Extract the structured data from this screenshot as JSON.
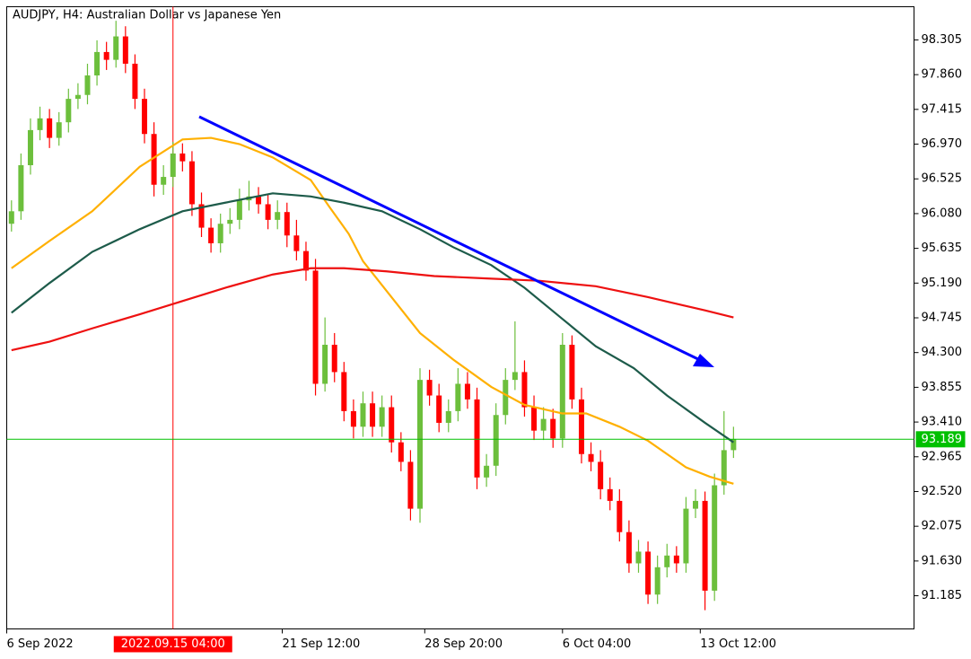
{
  "chart_data": {
    "type": "candlestick",
    "title": "AUDJPY, H4:  Australian Dollar vs Japanese Yen",
    "x": [
      0,
      2,
      4,
      6,
      8,
      10,
      12,
      14,
      16,
      18,
      20,
      22,
      24,
      26,
      28,
      30,
      32,
      34,
      36,
      38,
      40,
      42,
      44,
      46,
      48,
      50,
      52,
      54,
      56,
      58,
      60,
      62,
      64,
      66,
      68,
      70,
      72,
      74,
      76,
      78,
      80,
      82,
      84,
      86,
      88,
      90,
      92,
      94,
      96,
      98,
      100,
      102,
      104,
      106,
      108,
      110,
      112,
      114,
      116,
      118,
      120,
      122,
      124,
      126,
      128,
      130,
      132,
      134,
      136,
      138,
      140,
      142,
      144,
      146,
      148,
      150,
      152
    ],
    "open": [
      95.95,
      96.11,
      96.7,
      97.15,
      97.3,
      97.05,
      97.25,
      97.55,
      97.6,
      97.85,
      98.15,
      98.05,
      98.35,
      98.0,
      97.55,
      97.1,
      96.45,
      96.55,
      96.85,
      96.75,
      96.2,
      95.9,
      95.7,
      95.95,
      96.0,
      96.25,
      96.3,
      96.2,
      96.0,
      96.1,
      95.8,
      95.6,
      95.35,
      93.9,
      94.4,
      94.05,
      93.55,
      93.35,
      93.65,
      93.35,
      93.6,
      93.15,
      92.9,
      92.3,
      93.95,
      93.75,
      93.4,
      93.55,
      93.9,
      93.7,
      92.7,
      92.85,
      93.5,
      93.95,
      94.05,
      93.6,
      93.3,
      93.45,
      93.2,
      94.4,
      93.7,
      93.0,
      92.9,
      92.55,
      92.4,
      92.0,
      91.6,
      91.75,
      91.2,
      91.55,
      91.7,
      91.6,
      92.3,
      92.4,
      91.25,
      92.6,
      93.05
    ],
    "high": [
      96.25,
      96.85,
      97.3,
      97.45,
      97.42,
      97.38,
      97.68,
      97.75,
      98.0,
      98.3,
      98.28,
      98.55,
      98.48,
      98.12,
      97.68,
      97.25,
      96.7,
      97.0,
      96.98,
      96.88,
      96.35,
      96.02,
      96.08,
      96.15,
      96.4,
      96.5,
      96.42,
      96.32,
      96.25,
      96.22,
      96.0,
      95.72,
      95.5,
      94.75,
      94.55,
      94.18,
      93.7,
      93.8,
      93.8,
      93.75,
      93.75,
      93.28,
      93.05,
      94.1,
      94.08,
      93.9,
      93.7,
      94.1,
      94.05,
      93.85,
      93.0,
      93.65,
      94.1,
      94.7,
      94.2,
      93.75,
      93.6,
      93.58,
      94.55,
      94.52,
      93.85,
      93.15,
      93.05,
      92.7,
      92.55,
      92.15,
      91.9,
      91.88,
      91.7,
      91.85,
      91.82,
      92.45,
      92.55,
      92.52,
      92.75,
      93.55,
      93.35
    ],
    "low": [
      95.85,
      96.0,
      96.58,
      97.02,
      96.92,
      96.95,
      97.12,
      97.42,
      97.48,
      97.72,
      97.92,
      97.95,
      97.88,
      97.42,
      96.98,
      96.3,
      96.32,
      96.42,
      96.62,
      96.05,
      95.78,
      95.58,
      95.58,
      95.82,
      95.88,
      96.12,
      96.08,
      95.88,
      95.88,
      95.65,
      95.48,
      95.22,
      93.75,
      93.8,
      93.92,
      93.42,
      93.2,
      93.22,
      93.22,
      93.22,
      93.02,
      92.78,
      92.15,
      92.12,
      93.62,
      93.28,
      93.28,
      93.42,
      93.58,
      92.55,
      92.58,
      92.72,
      93.38,
      93.82,
      93.48,
      93.18,
      93.18,
      93.08,
      93.08,
      93.58,
      92.88,
      92.78,
      92.42,
      92.28,
      91.88,
      91.48,
      91.48,
      91.08,
      91.08,
      91.42,
      91.48,
      91.48,
      92.18,
      91.0,
      91.12,
      92.48,
      92.95
    ],
    "close": [
      96.11,
      96.7,
      97.15,
      97.3,
      97.05,
      97.25,
      97.55,
      97.6,
      97.85,
      98.15,
      98.05,
      98.35,
      98.0,
      97.55,
      97.1,
      96.45,
      96.55,
      96.85,
      96.75,
      96.2,
      95.9,
      95.7,
      95.95,
      96.0,
      96.25,
      96.3,
      96.2,
      96.0,
      96.1,
      95.8,
      95.6,
      95.35,
      93.9,
      94.4,
      94.05,
      93.55,
      93.35,
      93.65,
      93.35,
      93.6,
      93.15,
      92.9,
      92.3,
      93.95,
      93.75,
      93.4,
      93.55,
      93.9,
      93.7,
      92.7,
      92.85,
      93.5,
      93.95,
      94.05,
      93.6,
      93.3,
      93.45,
      93.2,
      94.4,
      93.7,
      93.0,
      92.9,
      92.55,
      92.4,
      92.0,
      91.6,
      91.75,
      91.2,
      91.55,
      91.7,
      91.6,
      92.3,
      92.4,
      91.25,
      92.6,
      93.05,
      93.19
    ],
    "up_color": "#6cbf3c",
    "down_color": "#ff0000",
    "moving_averages": [
      {
        "color": "#ffb000",
        "x": [
          0,
          8,
          17,
          27,
          36,
          42,
          48,
          55,
          63,
          67,
          71,
          74,
          80,
          86,
          93,
          101,
          108,
          116,
          121,
          128,
          134,
          142,
          147,
          152
        ],
        "values": [
          95.38,
          95.73,
          96.11,
          96.68,
          97.03,
          97.05,
          96.97,
          96.8,
          96.51,
          96.16,
          95.82,
          95.47,
          95.01,
          94.55,
          94.21,
          93.86,
          93.63,
          93.52,
          93.52,
          93.35,
          93.17,
          92.83,
          92.71,
          92.62
        ]
      },
      {
        "color": "#1d5b4a",
        "x": [
          0,
          8,
          17,
          27,
          36,
          45,
          55,
          63,
          70,
          78,
          86,
          93,
          101,
          108,
          116,
          123,
          131,
          138,
          146,
          152
        ],
        "values": [
          94.81,
          95.19,
          95.59,
          95.88,
          96.11,
          96.22,
          96.34,
          96.3,
          96.22,
          96.11,
          95.88,
          95.65,
          95.42,
          95.13,
          94.73,
          94.38,
          94.1,
          93.75,
          93.4,
          93.15
        ]
      },
      {
        "color": "#ee1111",
        "x": [
          0,
          8,
          17,
          27,
          36,
          45,
          55,
          63,
          70,
          79,
          89,
          100,
          111,
          123,
          134,
          146,
          152
        ],
        "values": [
          94.33,
          94.44,
          94.61,
          94.79,
          94.96,
          95.13,
          95.3,
          95.38,
          95.38,
          95.34,
          95.28,
          95.25,
          95.22,
          95.15,
          95.01,
          94.84,
          94.75
        ]
      }
    ],
    "current_price": 93.189,
    "current_price_color": "#00c000",
    "xlim": [
      -1,
      190
    ],
    "ylim": [
      90.76,
      98.73
    ],
    "xticks": [
      {
        "value": -1,
        "label": "6 Sep 2022"
      },
      {
        "value": 57,
        "label": "21 Sep 12:00"
      },
      {
        "value": 87,
        "label": "28 Sep 20:00"
      },
      {
        "value": 116,
        "label": "6 Oct 04:00"
      },
      {
        "value": 145,
        "label": "13 Oct 12:00"
      }
    ],
    "yticks": [
      98.305,
      {
        "value": 97.86,
        "label": "97.860"
      },
      97.415,
      {
        "value": 96.97,
        "label": "96.970"
      },
      96.525,
      {
        "value": 96.08,
        "label": "96.080"
      },
      95.635,
      {
        "value": 95.19,
        "label": "95.190"
      },
      94.745,
      {
        "value": 94.3,
        "label": "94.300"
      },
      93.855,
      {
        "value": 93.41,
        "label": "93.410"
      },
      92.965,
      {
        "value": 92.52,
        "label": "92.520"
      },
      92.075,
      {
        "value": 91.63,
        "label": "91.630"
      },
      91.185
    ],
    "crosshair": {
      "value": 34,
      "label": "2022.09.15 04:00"
    }
  }
}
